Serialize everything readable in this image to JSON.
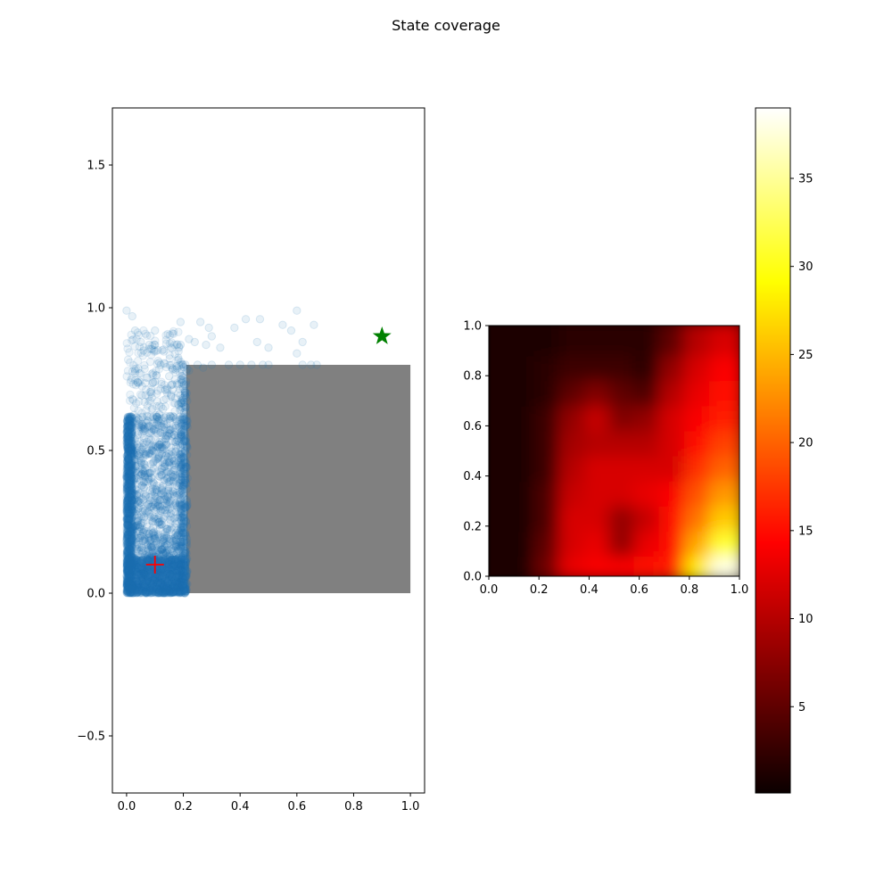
{
  "figure": {
    "title": "State coverage"
  },
  "chart_data": [
    {
      "type": "scatter",
      "title": "",
      "xlabel": "",
      "ylabel": "",
      "xlim": [
        -0.05,
        1.05
      ],
      "ylim": [
        -0.7,
        1.7
      ],
      "x_ticks": [
        "0.0",
        "0.2",
        "0.4",
        "0.6",
        "0.8",
        "1.0"
      ],
      "y_ticks": [
        "−0.5",
        "0.0",
        "0.5",
        "1.0",
        "1.5"
      ],
      "series": [
        {
          "marker": "circle",
          "color": "#1f77b4",
          "alpha": 0.12,
          "distribution": "dense near x in [0, 0.21], y in [0, 0.8]; sparse points up to y = 1.0",
          "dense_region": {
            "x": [
              0.0,
              0.21
            ],
            "y": [
              0.0,
              0.62
            ]
          },
          "sparse_points": [
            [
              0.0,
              0.99
            ],
            [
              0.02,
              0.97
            ],
            [
              0.03,
              0.92
            ],
            [
              0.05,
              0.88
            ],
            [
              0.06,
              0.85
            ],
            [
              0.1,
              0.92
            ],
            [
              0.08,
              0.87
            ],
            [
              0.1,
              0.87
            ],
            [
              0.12,
              0.8
            ],
            [
              0.15,
              0.76
            ],
            [
              0.19,
              0.95
            ],
            [
              0.19,
              0.87
            ],
            [
              0.22,
              0.89
            ],
            [
              0.24,
              0.88
            ],
            [
              0.26,
              0.95
            ],
            [
              0.28,
              0.87
            ],
            [
              0.29,
              0.93
            ],
            [
              0.3,
              0.9
            ],
            [
              0.33,
              0.86
            ],
            [
              0.38,
              0.93
            ],
            [
              0.42,
              0.96
            ],
            [
              0.46,
              0.88
            ],
            [
              0.47,
              0.96
            ],
            [
              0.5,
              0.86
            ],
            [
              0.55,
              0.94
            ],
            [
              0.58,
              0.92
            ],
            [
              0.6,
              0.99
            ],
            [
              0.6,
              0.84
            ],
            [
              0.62,
              0.88
            ],
            [
              0.66,
              0.94
            ],
            [
              0.36,
              0.8
            ],
            [
              0.4,
              0.8
            ],
            [
              0.44,
              0.8
            ],
            [
              0.48,
              0.8
            ],
            [
              0.5,
              0.8
            ],
            [
              0.62,
              0.8
            ],
            [
              0.65,
              0.8
            ],
            [
              0.67,
              0.8
            ],
            [
              0.3,
              0.8
            ],
            [
              0.25,
              0.8
            ],
            [
              0.22,
              0.78
            ],
            [
              0.27,
              0.79
            ]
          ]
        }
      ],
      "obstacle": {
        "x": [
          0.21,
          1.0
        ],
        "y": [
          0.0,
          0.8
        ],
        "color": "#808080"
      },
      "start_marker": {
        "x": 0.1,
        "y": 0.1,
        "marker": "plus",
        "color": "#ff0000"
      },
      "goal_marker": {
        "x": 0.9,
        "y": 0.9,
        "marker": "star",
        "color": "#008000"
      }
    },
    {
      "type": "heatmap",
      "title": "",
      "xlabel": "",
      "ylabel": "",
      "xlim": [
        0.0,
        1.0
      ],
      "ylim": [
        0.0,
        1.0
      ],
      "x_ticks": [
        "0.0",
        "0.2",
        "0.4",
        "0.6",
        "0.8",
        "1.0"
      ],
      "y_ticks": [
        "0.0",
        "0.2",
        "0.4",
        "0.6",
        "0.8",
        "1.0"
      ],
      "colormap": "hot",
      "color_range": [
        0.1,
        39.0
      ],
      "grid_x": [
        0.05,
        0.15,
        0.25,
        0.35,
        0.45,
        0.55,
        0.65,
        0.75,
        0.85,
        0.95
      ],
      "grid_y": [
        0.05,
        0.15,
        0.25,
        0.35,
        0.45,
        0.55,
        0.65,
        0.75,
        0.85,
        0.95
      ],
      "values": [
        [
          1,
          1,
          6,
          13,
          14,
          14,
          15,
          16,
          28,
          38
        ],
        [
          1,
          1,
          5,
          12,
          13,
          8,
          13,
          15,
          24,
          31
        ],
        [
          1,
          1,
          4,
          12,
          12,
          8,
          11,
          15,
          21,
          26
        ],
        [
          1,
          1,
          4,
          11,
          12,
          12,
          13,
          14,
          19,
          23
        ],
        [
          1,
          1,
          3,
          10,
          12,
          12,
          12,
          12,
          17,
          20
        ],
        [
          1,
          1,
          3,
          9,
          10,
          10,
          10,
          12,
          15,
          18
        ],
        [
          1,
          1,
          3,
          8,
          11,
          7,
          8,
          12,
          14,
          16
        ],
        [
          1,
          1,
          2,
          5,
          7,
          5,
          4,
          10,
          13,
          15
        ],
        [
          1,
          1,
          2,
          3,
          3,
          3,
          2,
          8,
          12,
          14
        ],
        [
          1,
          1,
          1,
          2,
          2,
          2,
          2,
          5,
          10,
          12
        ]
      ]
    }
  ],
  "colorbar": {
    "ticks": [
      "5",
      "10",
      "15",
      "20",
      "25",
      "30",
      "35"
    ],
    "tick_values": [
      5,
      10,
      15,
      20,
      25,
      30,
      35
    ],
    "range": [
      0.1,
      39.0
    ]
  }
}
